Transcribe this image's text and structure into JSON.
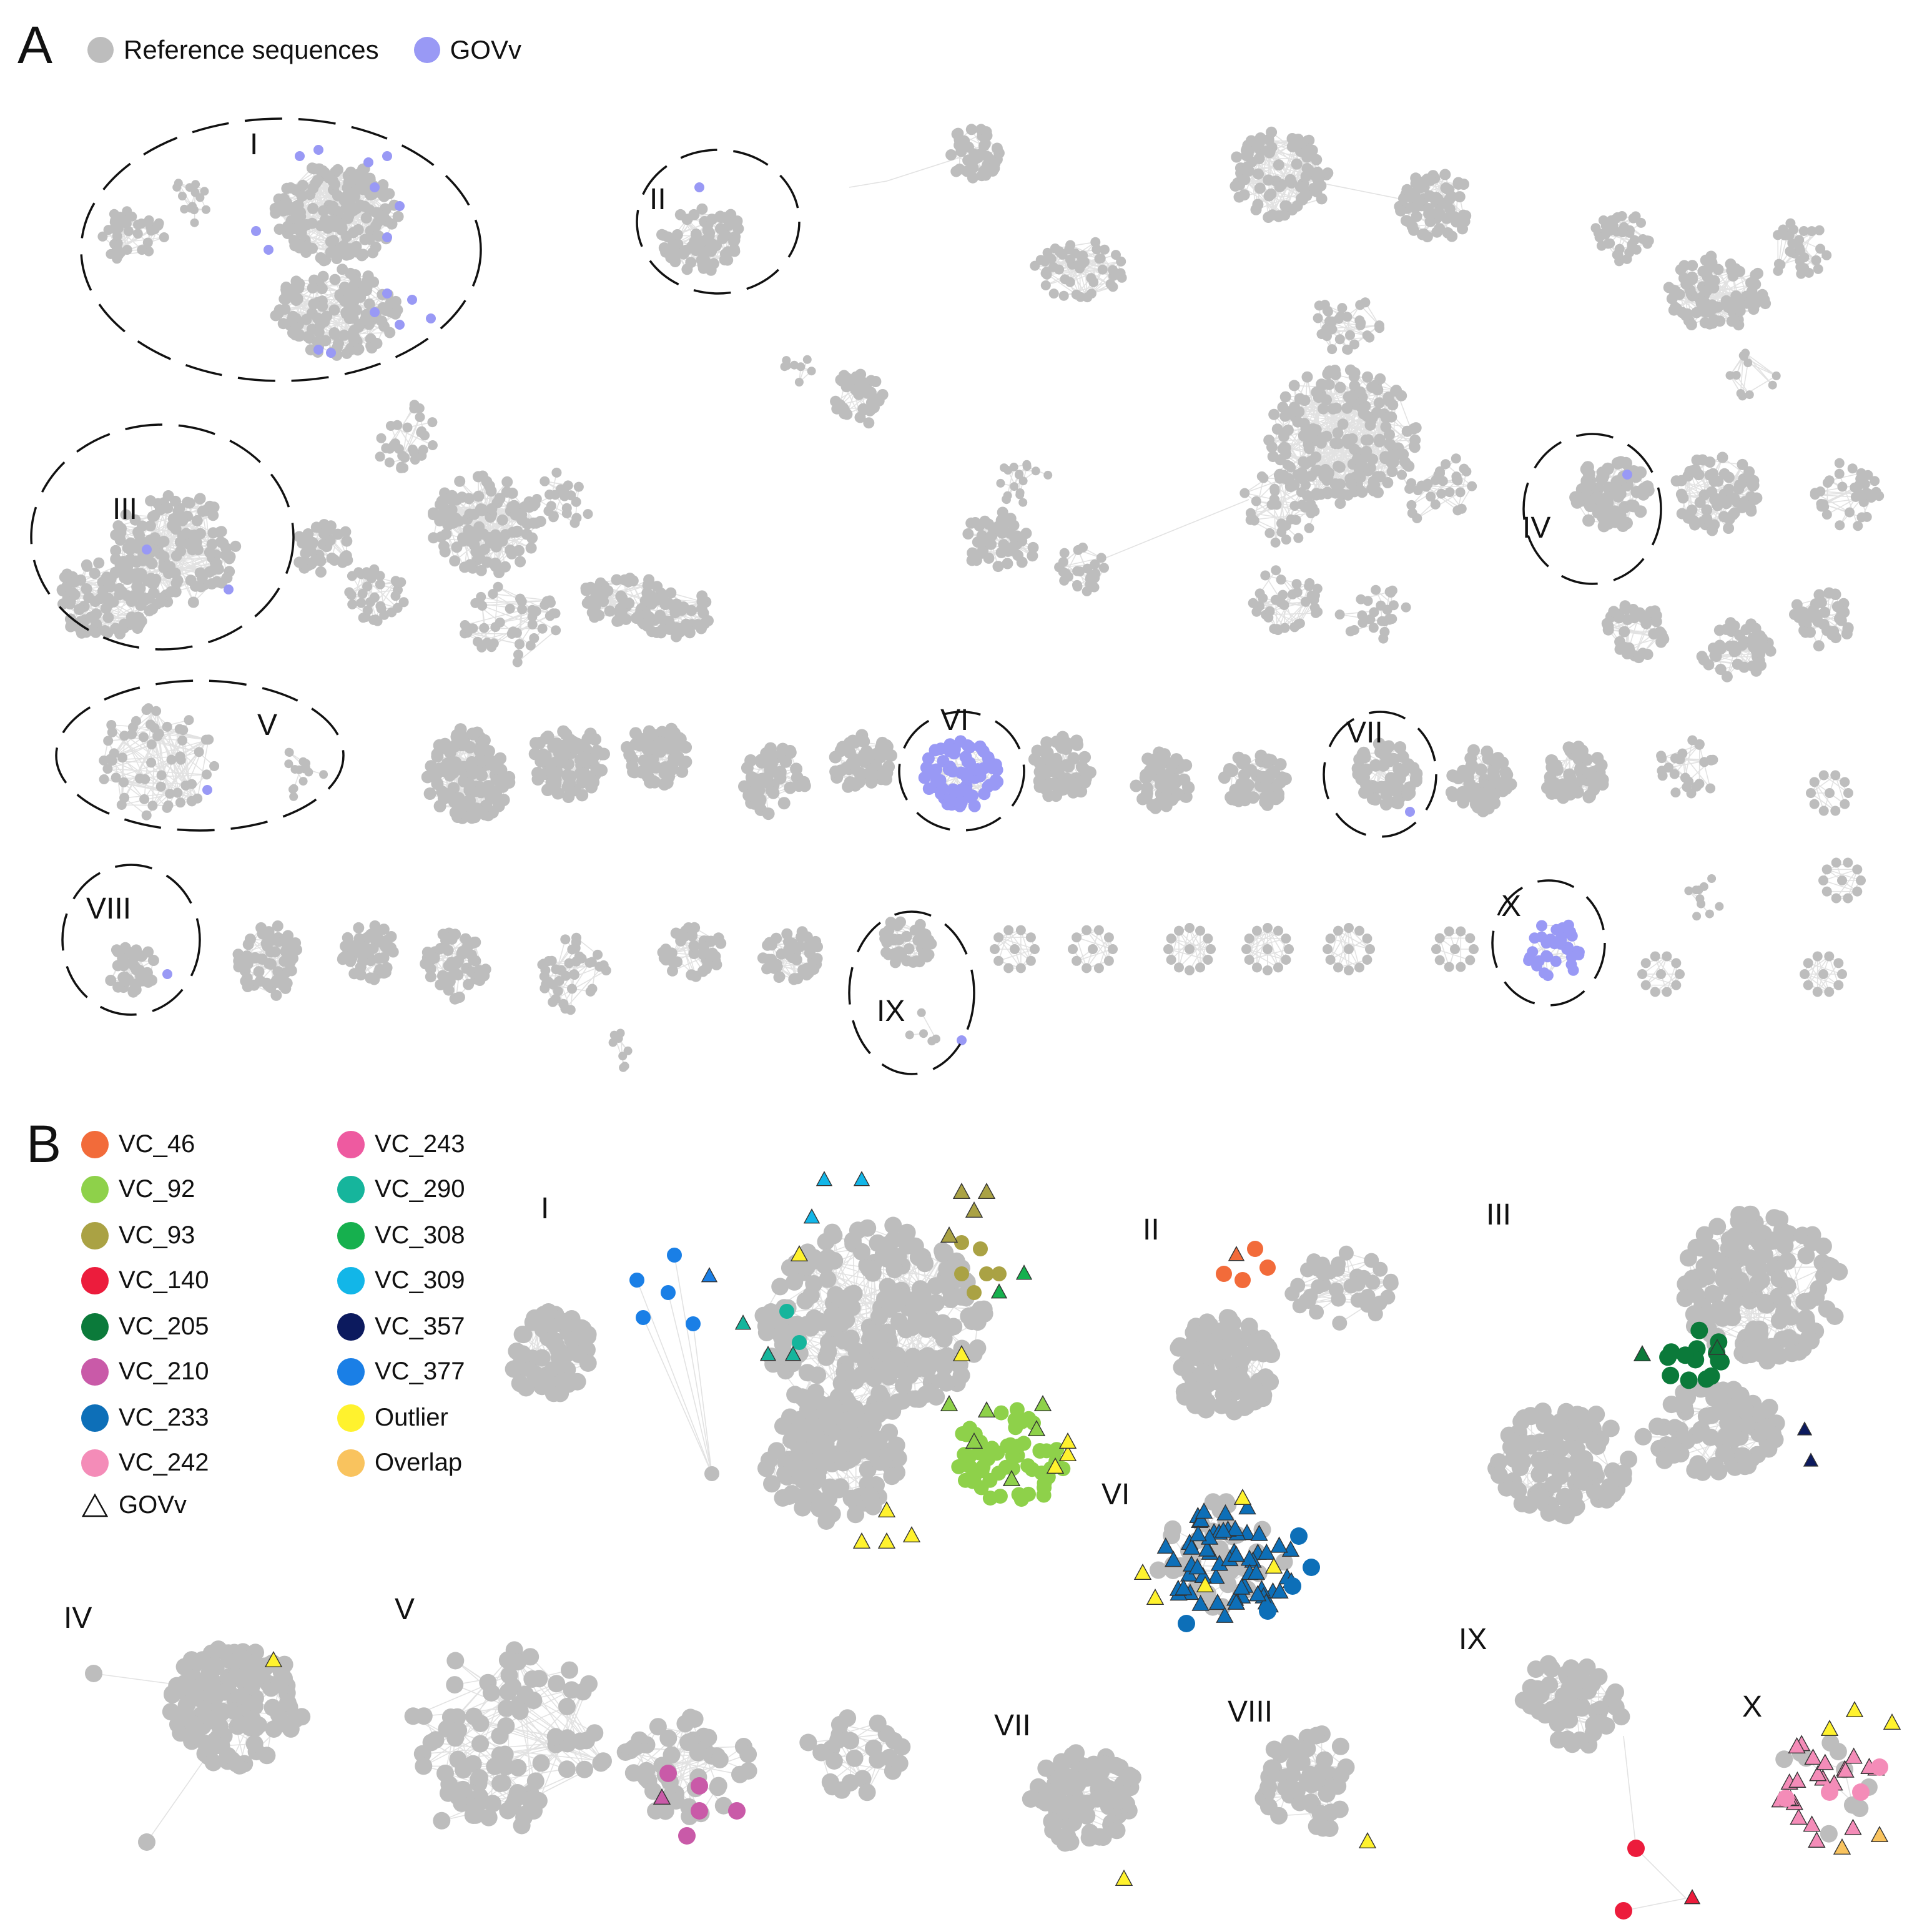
{
  "panels": {
    "a": "A",
    "b": "B"
  },
  "legend_a": [
    {
      "label": "Reference sequences",
      "color": "#bdbdbd"
    },
    {
      "label": "GOVv",
      "color": "#9999f5"
    }
  ],
  "legend_b": [
    {
      "label": "VC_46",
      "color": "#f26b3a",
      "shape": "circle"
    },
    {
      "label": "VC_92",
      "color": "#8ed14a",
      "shape": "circle"
    },
    {
      "label": "VC_93",
      "color": "#aaa244",
      "shape": "circle"
    },
    {
      "label": "VC_140",
      "color": "#ec1c3c",
      "shape": "circle"
    },
    {
      "label": "VC_205",
      "color": "#0b7a3a",
      "shape": "circle"
    },
    {
      "label": "VC_210",
      "color": "#c95aa8",
      "shape": "circle"
    },
    {
      "label": "VC_233",
      "color": "#0d6fb8",
      "shape": "circle"
    },
    {
      "label": "VC_242",
      "color": "#f48cb8",
      "shape": "circle"
    },
    {
      "label": "GOVv",
      "color": "#ffffff",
      "shape": "triangle"
    },
    {
      "label": "VC_243",
      "color": "#ee5aa0",
      "shape": "circle"
    },
    {
      "label": "VC_290",
      "color": "#16b59c",
      "shape": "circle"
    },
    {
      "label": "VC_308",
      "color": "#16b04e",
      "shape": "circle"
    },
    {
      "label": "VC_309",
      "color": "#12b6e8",
      "shape": "circle"
    },
    {
      "label": "VC_357",
      "color": "#0c1a5e",
      "shape": "circle"
    },
    {
      "label": "VC_377",
      "color": "#1a7fe6",
      "shape": "circle"
    },
    {
      "label": "Outlier",
      "color": "#fff22e",
      "shape": "circle"
    },
    {
      "label": "Overlap",
      "color": "#f9c35e",
      "shape": "circle"
    }
  ],
  "cluster_labels_a": [
    "I",
    "II",
    "III",
    "IV",
    "V",
    "VI",
    "VII",
    "VIII",
    "IX",
    "X"
  ],
  "cluster_labels_b": [
    "I",
    "II",
    "III",
    "IV",
    "V",
    "VI",
    "VII",
    "VIII",
    "IX",
    "X"
  ],
  "colors": {
    "reference": "#bdbdbd",
    "govv": "#9999f5",
    "edge": "#e2e2e2",
    "outline": "#111111"
  }
}
